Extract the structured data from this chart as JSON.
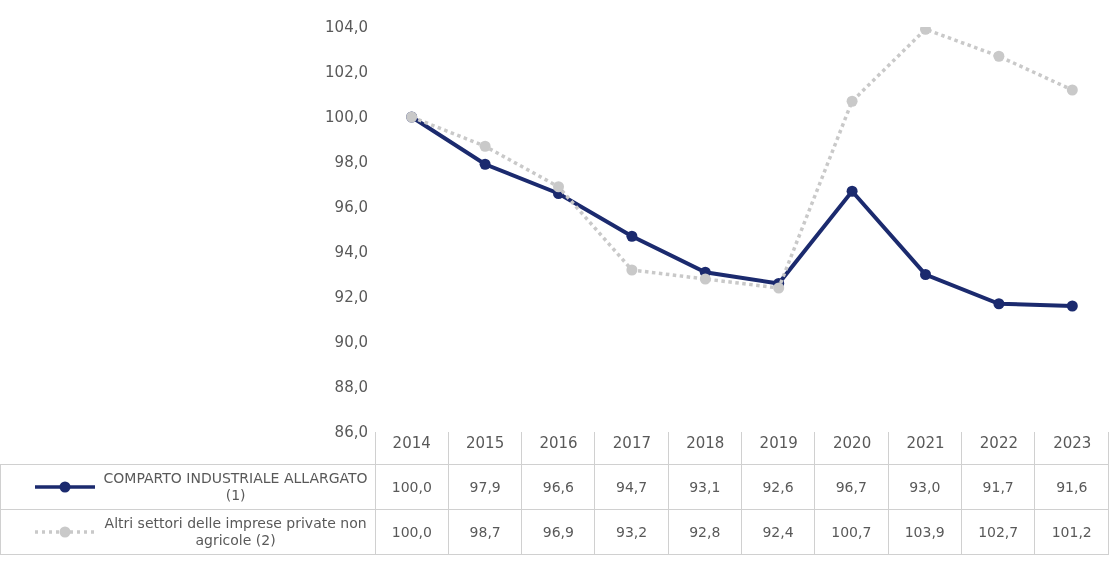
{
  "chart_data": {
    "type": "line",
    "categories": [
      "2014",
      "2015",
      "2016",
      "2017",
      "2018",
      "2019",
      "2020",
      "2021",
      "2022",
      "2023"
    ],
    "series": [
      {
        "name": "COMPARTO INDUSTRIALE ALLARGATO (1)",
        "color": "#1b2a6e",
        "line_style": "solid",
        "marker": "circle",
        "values": [
          100.0,
          97.9,
          96.6,
          94.7,
          93.1,
          92.6,
          96.7,
          93.0,
          91.7,
          91.6
        ],
        "value_labels": [
          "100,0",
          "97,9",
          "96,6",
          "94,7",
          "93,1",
          "92,6",
          "96,7",
          "93,0",
          "91,7",
          "91,6"
        ]
      },
      {
        "name": "Altri settori delle imprese private non agricole (2)",
        "color": "#c9c9c9",
        "line_style": "dotted",
        "marker": "circle",
        "values": [
          100.0,
          98.7,
          96.9,
          93.2,
          92.8,
          92.4,
          100.7,
          103.9,
          102.7,
          101.2
        ],
        "value_labels": [
          "100,0",
          "98,7",
          "96,9",
          "93,2",
          "92,8",
          "92,4",
          "100,7",
          "103,9",
          "102,7",
          "101,2"
        ]
      }
    ],
    "ylim": [
      86,
      104
    ],
    "yticks": [
      {
        "value": 86,
        "label": "86,0"
      },
      {
        "value": 88,
        "label": "88,0"
      },
      {
        "value": 90,
        "label": "90,0"
      },
      {
        "value": 92,
        "label": "92,0"
      },
      {
        "value": 94,
        "label": "94,0"
      },
      {
        "value": 96,
        "label": "96,0"
      },
      {
        "value": 98,
        "label": "98,0"
      },
      {
        "value": 100,
        "label": "100,0"
      },
      {
        "value": 102,
        "label": "102,0"
      },
      {
        "value": 104,
        "label": "104,0"
      }
    ],
    "grid": false,
    "legend": "bottom"
  }
}
